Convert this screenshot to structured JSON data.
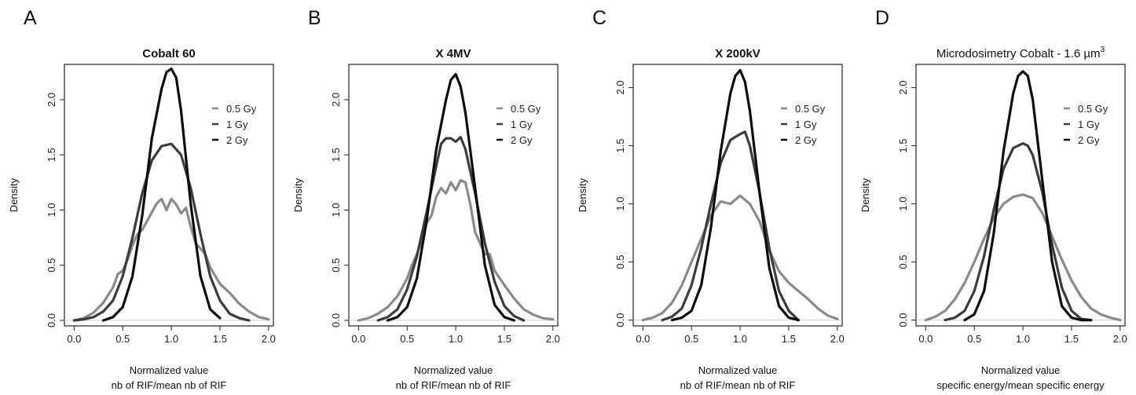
{
  "colors": {
    "0.5 Gy": "#8a8a8a",
    "1 Gy": "#3c3c3c",
    "2 Gy": "#0d0d0d"
  },
  "chart_data": [
    {
      "type": "line",
      "letter": "A",
      "title": "Cobalt 60",
      "title_bold": true,
      "title_sup": "",
      "xlabel": "Normalized value",
      "xlabel2": "nb of RIF/mean nb of RIF",
      "ylabel": "Density",
      "xlim": [
        -0.1,
        2.05
      ],
      "ylim": [
        -0.05,
        2.32
      ],
      "xticks": [
        "0.0",
        "0.5",
        "1.0",
        "1.5",
        "2.0"
      ],
      "yticks": [
        "0.0",
        "0.5",
        "1.0",
        "1.5",
        "2.0"
      ],
      "legend_position": "top-right",
      "series": [
        {
          "name": "0.5 Gy",
          "x": [
            0.0,
            0.1,
            0.2,
            0.3,
            0.4,
            0.45,
            0.5,
            0.55,
            0.6,
            0.65,
            0.7,
            0.75,
            0.8,
            0.85,
            0.9,
            0.95,
            1.0,
            1.05,
            1.1,
            1.15,
            1.2,
            1.25,
            1.3,
            1.35,
            1.4,
            1.5,
            1.6,
            1.7,
            1.8,
            1.9,
            2.0
          ],
          "y": [
            0.0,
            0.02,
            0.07,
            0.16,
            0.3,
            0.42,
            0.45,
            0.55,
            0.68,
            0.78,
            0.82,
            0.9,
            0.98,
            1.06,
            1.1,
            1.0,
            1.1,
            1.05,
            0.97,
            1.02,
            0.85,
            0.7,
            0.65,
            0.6,
            0.48,
            0.33,
            0.25,
            0.15,
            0.08,
            0.03,
            0.01
          ]
        },
        {
          "name": "1 Gy",
          "x": [
            0.0,
            0.1,
            0.2,
            0.3,
            0.4,
            0.5,
            0.6,
            0.7,
            0.8,
            0.9,
            1.0,
            1.1,
            1.2,
            1.3,
            1.4,
            1.5,
            1.6,
            1.7,
            1.8
          ],
          "y": [
            0.0,
            0.01,
            0.03,
            0.08,
            0.18,
            0.4,
            0.75,
            1.15,
            1.45,
            1.58,
            1.6,
            1.5,
            1.2,
            0.78,
            0.4,
            0.18,
            0.06,
            0.02,
            0.0
          ]
        },
        {
          "name": "2 Gy",
          "x": [
            0.3,
            0.4,
            0.5,
            0.6,
            0.7,
            0.8,
            0.9,
            0.95,
            1.0,
            1.05,
            1.1,
            1.2,
            1.3,
            1.4,
            1.5
          ],
          "y": [
            0.0,
            0.03,
            0.12,
            0.4,
            0.95,
            1.65,
            2.1,
            2.25,
            2.28,
            2.2,
            1.9,
            1.05,
            0.4,
            0.1,
            0.02
          ]
        }
      ]
    },
    {
      "type": "line",
      "letter": "B",
      "title": "X 4MV",
      "title_bold": true,
      "title_sup": "",
      "xlabel": "Normalized value",
      "xlabel2": "nb of RIF/mean nb of RIF",
      "ylabel": "Density",
      "xlim": [
        -0.1,
        2.05
      ],
      "ylim": [
        -0.05,
        2.32
      ],
      "xticks": [
        "0.0",
        "0.5",
        "1.0",
        "1.5",
        "2.0"
      ],
      "yticks": [
        "0.0",
        "0.5",
        "1.0",
        "1.5",
        "2.0"
      ],
      "legend_position": "top-right",
      "series": [
        {
          "name": "0.5 Gy",
          "x": [
            0.0,
            0.1,
            0.2,
            0.3,
            0.4,
            0.5,
            0.55,
            0.6,
            0.65,
            0.7,
            0.75,
            0.8,
            0.85,
            0.9,
            0.95,
            1.0,
            1.05,
            1.1,
            1.15,
            1.2,
            1.3,
            1.35,
            1.4,
            1.5,
            1.6,
            1.7,
            1.8,
            1.9,
            2.0
          ],
          "y": [
            0.0,
            0.02,
            0.06,
            0.12,
            0.22,
            0.38,
            0.5,
            0.6,
            0.72,
            0.88,
            0.95,
            1.12,
            1.2,
            1.15,
            1.25,
            1.18,
            1.27,
            1.25,
            1.05,
            0.8,
            0.6,
            0.6,
            0.45,
            0.32,
            0.2,
            0.1,
            0.05,
            0.02,
            0.01
          ]
        },
        {
          "name": "1 Gy",
          "x": [
            0.2,
            0.3,
            0.4,
            0.5,
            0.6,
            0.7,
            0.8,
            0.85,
            0.9,
            0.95,
            1.0,
            1.05,
            1.1,
            1.2,
            1.3,
            1.4,
            1.5,
            1.6,
            1.7
          ],
          "y": [
            0.0,
            0.03,
            0.1,
            0.28,
            0.58,
            0.98,
            1.4,
            1.6,
            1.65,
            1.65,
            1.62,
            1.66,
            1.55,
            1.15,
            0.7,
            0.35,
            0.13,
            0.04,
            0.0
          ]
        },
        {
          "name": "2 Gy",
          "x": [
            0.3,
            0.4,
            0.5,
            0.6,
            0.7,
            0.8,
            0.9,
            0.95,
            1.0,
            1.05,
            1.1,
            1.2,
            1.3,
            1.4,
            1.5,
            1.6
          ],
          "y": [
            0.0,
            0.03,
            0.12,
            0.38,
            0.9,
            1.55,
            2.0,
            2.18,
            2.23,
            2.12,
            1.88,
            1.2,
            0.5,
            0.14,
            0.03,
            0.0
          ]
        }
      ]
    },
    {
      "type": "line",
      "letter": "C",
      "title": "X 200kV",
      "title_bold": true,
      "title_sup": "",
      "xlabel": "Normalized value",
      "xlabel2": "nb of RIF/mean nb of RIF",
      "ylabel": "Density",
      "xlim": [
        -0.1,
        2.05
      ],
      "ylim": [
        -0.05,
        2.2
      ],
      "xticks": [
        "0.0",
        "0.5",
        "1.0",
        "1.5",
        "2.0"
      ],
      "yticks": [
        "0.0",
        "0.5",
        "1.0",
        "1.5",
        "2.0"
      ],
      "legend_position": "top-right",
      "series": [
        {
          "name": "0.5 Gy",
          "x": [
            0.0,
            0.1,
            0.2,
            0.3,
            0.4,
            0.5,
            0.6,
            0.7,
            0.8,
            0.9,
            1.0,
            1.1,
            1.2,
            1.3,
            1.4,
            1.5,
            1.6,
            1.7,
            1.8,
            1.9,
            2.0
          ],
          "y": [
            0.0,
            0.02,
            0.06,
            0.15,
            0.3,
            0.5,
            0.7,
            0.9,
            1.02,
            1.0,
            1.07,
            1.0,
            0.85,
            0.6,
            0.42,
            0.32,
            0.25,
            0.18,
            0.1,
            0.04,
            0.01
          ]
        },
        {
          "name": "1 Gy",
          "x": [
            0.2,
            0.3,
            0.4,
            0.5,
            0.6,
            0.7,
            0.8,
            0.9,
            1.0,
            1.05,
            1.1,
            1.2,
            1.3,
            1.4,
            1.5,
            1.6
          ],
          "y": [
            0.0,
            0.03,
            0.1,
            0.3,
            0.62,
            1.0,
            1.35,
            1.55,
            1.6,
            1.62,
            1.5,
            1.1,
            0.62,
            0.25,
            0.08,
            0.0
          ]
        },
        {
          "name": "2 Gy",
          "x": [
            0.3,
            0.4,
            0.5,
            0.6,
            0.7,
            0.8,
            0.9,
            0.95,
            1.0,
            1.05,
            1.1,
            1.2,
            1.3,
            1.4,
            1.5,
            1.6
          ],
          "y": [
            0.0,
            0.02,
            0.08,
            0.3,
            0.8,
            1.45,
            1.95,
            2.1,
            2.15,
            2.05,
            1.8,
            1.1,
            0.45,
            0.12,
            0.02,
            0.0
          ]
        }
      ]
    },
    {
      "type": "line",
      "letter": "D",
      "title": "Microdosimetry Cobalt - 1.6  µm",
      "title_bold": false,
      "title_sup": "3",
      "xlabel": "Normalized value",
      "xlabel2": "specific energy/mean specific energy",
      "ylabel": "Density",
      "xlim": [
        -0.1,
        2.05
      ],
      "ylim": [
        -0.05,
        2.2
      ],
      "xticks": [
        "0.0",
        "0.5",
        "1.0",
        "1.5",
        "2.0"
      ],
      "yticks": [
        "0.0",
        "0.5",
        "1.0",
        "1.5",
        "2.0"
      ],
      "legend_position": "top-right",
      "series": [
        {
          "name": "0.5 Gy",
          "x": [
            0.0,
            0.1,
            0.2,
            0.3,
            0.4,
            0.5,
            0.6,
            0.7,
            0.8,
            0.9,
            1.0,
            1.1,
            1.2,
            1.3,
            1.4,
            1.5,
            1.6,
            1.7,
            1.8,
            1.9,
            2.0
          ],
          "y": [
            0.0,
            0.03,
            0.08,
            0.18,
            0.32,
            0.5,
            0.7,
            0.88,
            1.0,
            1.06,
            1.08,
            1.05,
            0.92,
            0.72,
            0.52,
            0.34,
            0.2,
            0.1,
            0.05,
            0.02,
            0.0
          ]
        },
        {
          "name": "1 Gy",
          "x": [
            0.2,
            0.3,
            0.4,
            0.5,
            0.6,
            0.7,
            0.8,
            0.9,
            1.0,
            1.05,
            1.1,
            1.2,
            1.3,
            1.4,
            1.5,
            1.6,
            1.7
          ],
          "y": [
            0.0,
            0.02,
            0.08,
            0.25,
            0.55,
            0.95,
            1.3,
            1.48,
            1.52,
            1.5,
            1.42,
            1.1,
            0.65,
            0.28,
            0.08,
            0.01,
            0.0
          ]
        },
        {
          "name": "2 Gy",
          "x": [
            0.4,
            0.5,
            0.6,
            0.7,
            0.8,
            0.9,
            0.95,
            1.0,
            1.05,
            1.1,
            1.2,
            1.3,
            1.4,
            1.5,
            1.6,
            1.7
          ],
          "y": [
            0.0,
            0.05,
            0.25,
            0.75,
            1.45,
            1.95,
            2.1,
            2.14,
            2.1,
            1.9,
            1.2,
            0.5,
            0.12,
            0.02,
            0.0,
            0.0
          ]
        }
      ]
    }
  ]
}
